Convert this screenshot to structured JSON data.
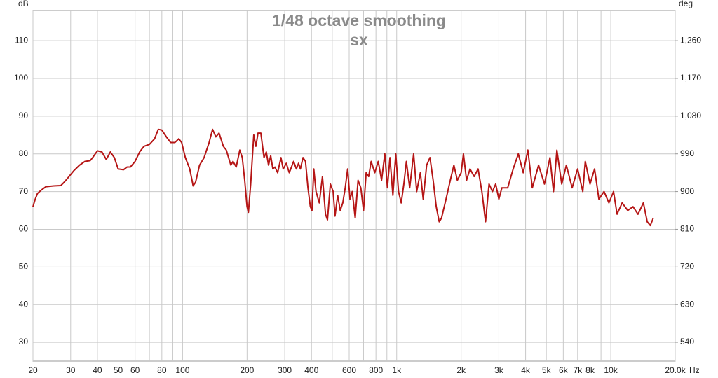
{
  "chart_data": {
    "type": "line",
    "title": "1/48 octave smoothing",
    "subtitle": "sx",
    "ylabel": "dB",
    "y2label": "deg",
    "xlabel": "Hz",
    "xscale": "log",
    "grid": true,
    "xlim": [
      20,
      20000
    ],
    "ylim": [
      25,
      118
    ],
    "y2lim": [
      495,
      1332
    ],
    "xticks": [
      20,
      30,
      40,
      50,
      60,
      80,
      100,
      200,
      300,
      400,
      600,
      800,
      {
        "value": 1000,
        "label": "1k"
      },
      {
        "value": 2000,
        "label": "2k"
      },
      {
        "value": 3000,
        "label": "3k"
      },
      {
        "value": 4000,
        "label": "4k"
      },
      {
        "value": 5000,
        "label": "5k"
      },
      {
        "value": 6000,
        "label": "6k"
      },
      {
        "value": 7000,
        "label": "7k"
      },
      {
        "value": 8000,
        "label": "8k"
      },
      {
        "value": 10000,
        "label": "10k"
      },
      {
        "value": 20000,
        "label": "20.0k"
      }
    ],
    "xminor": [
      70,
      90,
      500,
      700,
      900,
      9000
    ],
    "yticks": [
      30,
      40,
      50,
      60,
      70,
      80,
      90,
      100,
      110
    ],
    "y2ticks": [
      540,
      630,
      720,
      810,
      900,
      990,
      {
        "value": 1080,
        "label": "1,080"
      },
      {
        "value": 1170,
        "label": "1,170"
      },
      {
        "value": 1260,
        "label": "1,260"
      }
    ],
    "x": [
      20,
      20.5,
      21,
      22,
      23,
      25,
      27,
      28,
      29,
      31,
      33,
      35,
      37,
      38,
      40,
      42,
      44,
      46,
      48,
      50,
      53,
      55,
      57,
      60,
      63,
      66,
      70,
      74,
      77,
      80,
      84,
      88,
      92,
      96,
      99,
      103,
      108,
      112,
      115,
      120,
      126,
      133,
      138,
      143,
      148,
      155,
      160,
      168,
      172,
      178,
      185,
      190,
      195,
      200,
      203,
      208,
      215,
      220,
      225,
      232,
      240,
      246,
      252,
      258,
      264,
      270,
      278,
      288,
      295,
      305,
      315,
      320,
      330,
      340,
      348,
      355,
      365,
      375,
      385,
      395,
      402,
      410,
      420,
      435,
      450,
      465,
      475,
      490,
      505,
      515,
      530,
      545,
      560,
      575,
      590,
      605,
      620,
      640,
      660,
      680,
      700,
      720,
      740,
      760,
      790,
      820,
      850,
      880,
      905,
      930,
      960,
      990,
      1020,
      1050,
      1080,
      1110,
      1150,
      1200,
      1240,
      1290,
      1330,
      1380,
      1430,
      1480,
      1530,
      1580,
      1620,
      1700,
      1780,
      1850,
      1920,
      2000,
      2050,
      2120,
      2200,
      2300,
      2400,
      2500,
      2600,
      2700,
      2800,
      2900,
      3000,
      3100,
      3300,
      3500,
      3700,
      3900,
      4100,
      4300,
      4600,
      4900,
      5200,
      5400,
      5600,
      5900,
      6200,
      6600,
      7000,
      7400,
      7600,
      8000,
      8400,
      8800,
      9300,
      9800,
      10300,
      10700,
      11300,
      12000,
      12700,
      13400,
      14200,
      14800,
      15300,
      15800
    ],
    "series": [
      {
        "color": "#b51515",
        "values": [
          66,
          68,
          69.5,
          70.5,
          71.3,
          71.5,
          71.6,
          72.5,
          73.5,
          75.5,
          77,
          78,
          78.2,
          79,
          80.8,
          80.5,
          78.5,
          80.5,
          79,
          76,
          75.8,
          76.5,
          76.5,
          78,
          80.5,
          82,
          82.5,
          84,
          86.5,
          86.3,
          84.5,
          83,
          83,
          84,
          83,
          79,
          76,
          71.5,
          72.5,
          77,
          79,
          83,
          86.5,
          84.5,
          85.5,
          82,
          81,
          77,
          78,
          76.5,
          81,
          79,
          73,
          66,
          64.5,
          72,
          85,
          82,
          85.5,
          85.5,
          79,
          80.5,
          77,
          79.5,
          76,
          76.5,
          75,
          79,
          76,
          77.5,
          75,
          76,
          78,
          76,
          77.5,
          76,
          79,
          78,
          71,
          66,
          65,
          76,
          70,
          67,
          74,
          64,
          62.5,
          72,
          70,
          63.5,
          69,
          65,
          67,
          71,
          76,
          68,
          70,
          63,
          73,
          71,
          65,
          75,
          74,
          78,
          75,
          78,
          73,
          80,
          71,
          79,
          69,
          80,
          70,
          67,
          72,
          78,
          71,
          80,
          70,
          75,
          68,
          77,
          79,
          73,
          66,
          62,
          63,
          68,
          73,
          77,
          73,
          75,
          80,
          73,
          76,
          74,
          76,
          70,
          62,
          72,
          70,
          72,
          68,
          71,
          71,
          76,
          80,
          75,
          81,
          71,
          77,
          72,
          79,
          70,
          81,
          72,
          77,
          71,
          76,
          70,
          78,
          72,
          76,
          68,
          70,
          67,
          70,
          64,
          67,
          65,
          66,
          64,
          67,
          62,
          61,
          63
        ]
      }
    ]
  }
}
